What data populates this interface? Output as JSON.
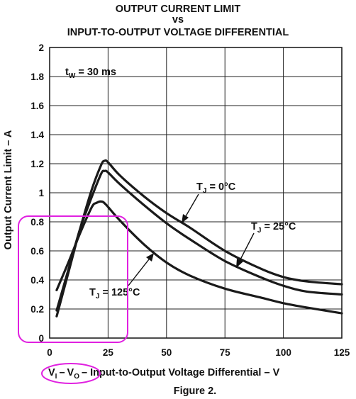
{
  "chart_data": {
    "type": "line",
    "title_line1": "OUTPUT CURRENT LIMIT",
    "title_line2": "vs",
    "title_line3": "INPUT-TO-OUTPUT VOLTAGE DIFFERENTIAL",
    "ylabel": "Output Current Limit – A",
    "xlabel_vi": "V",
    "xlabel_vi_sub": "I",
    "xlabel_sep": "–",
    "xlabel_vo": "V",
    "xlabel_vo_sub": "O",
    "xlabel_rest": "– Input-to-Output Voltage Differential – V",
    "caption": "Figure 2.",
    "xlim": [
      0,
      125
    ],
    "ylim": [
      0,
      2
    ],
    "grid": true,
    "xticks": [
      "0",
      "25",
      "50",
      "75",
      "100",
      "125"
    ],
    "yticks": [
      "0",
      "0.2",
      "0.4",
      "0.6",
      "0.8",
      "1",
      "1.2",
      "1.4",
      "1.6",
      "1.8",
      "2"
    ],
    "condition": {
      "main": "t",
      "sub": "W",
      "rest": " = 30 ms"
    },
    "series": [
      {
        "label": {
          "main": "T",
          "sub": "J",
          "rest": " = 0°C"
        },
        "x": [
          3,
          8,
          13,
          18,
          22,
          23.5,
          25,
          30,
          40,
          50,
          60,
          75,
          90,
          100,
          110,
          125
        ],
        "y": [
          0.15,
          0.45,
          0.75,
          1.02,
          1.19,
          1.22,
          1.21,
          1.12,
          0.98,
          0.86,
          0.76,
          0.6,
          0.48,
          0.42,
          0.39,
          0.37
        ]
      },
      {
        "label": {
          "main": "T",
          "sub": "J",
          "rest": " = 25°C"
        },
        "x": [
          3,
          8,
          13,
          18,
          22,
          23.5,
          25,
          30,
          40,
          50,
          60,
          75,
          90,
          100,
          110,
          125
        ],
        "y": [
          0.19,
          0.47,
          0.75,
          0.97,
          1.13,
          1.15,
          1.14,
          1.06,
          0.92,
          0.79,
          0.68,
          0.53,
          0.42,
          0.36,
          0.32,
          0.3
        ]
      },
      {
        "label": {
          "main": "T",
          "sub": "J",
          "rest": " = 125°C"
        },
        "x": [
          3,
          8,
          13,
          18,
          20,
          22,
          24,
          30,
          40,
          50,
          60,
          75,
          90,
          100,
          110,
          125
        ],
        "y": [
          0.33,
          0.52,
          0.72,
          0.9,
          0.93,
          0.94,
          0.92,
          0.81,
          0.65,
          0.52,
          0.43,
          0.34,
          0.28,
          0.24,
          0.21,
          0.17
        ]
      }
    ]
  }
}
